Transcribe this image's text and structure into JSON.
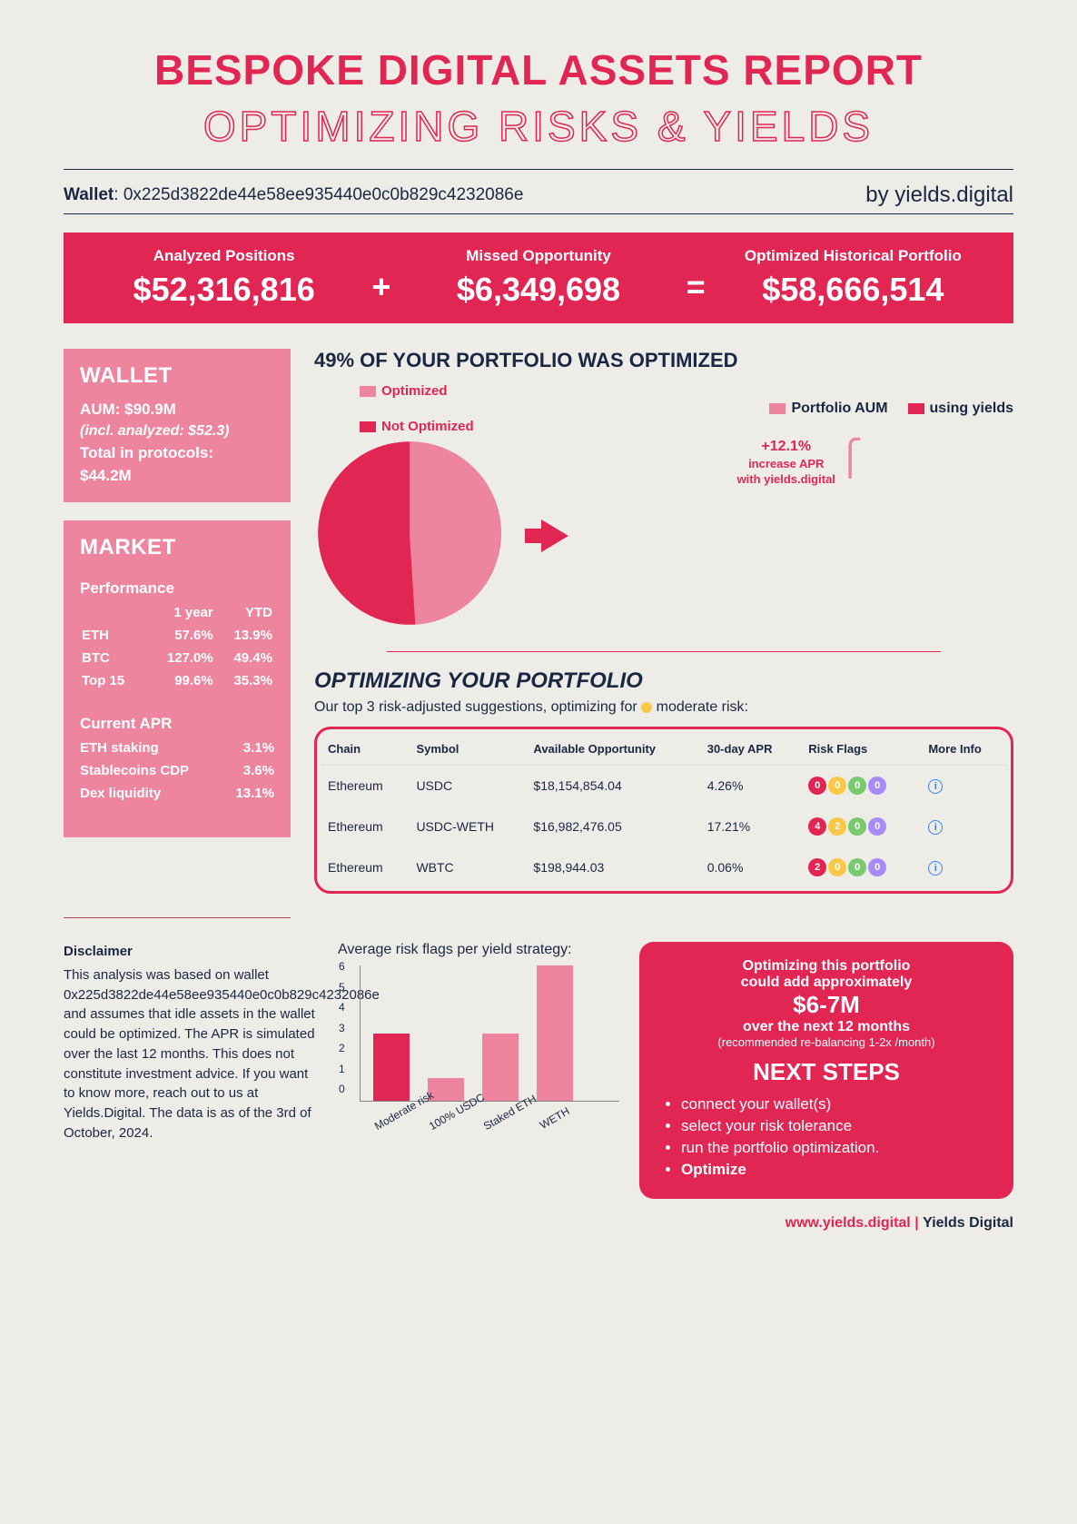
{
  "colors": {
    "primary": "#e12654",
    "light": "#ed859f",
    "lighter": "#f6b1c2",
    "dark_text": "#1a2744",
    "bg": "#eeece6",
    "moderate_dot": "#f9c846",
    "info_blue": "#3b82f6"
  },
  "header": {
    "title": "BESPOKE DIGITAL ASSETS REPORT",
    "subtitle": "OPTIMIZING RISKS & YIELDS",
    "wallet_label": "Wallet",
    "wallet_address": "0x225d3822de44e58ee935440e0c0b829c4232086e",
    "byline": "by yields.digital"
  },
  "metrics": {
    "analyzed_label": "Analyzed Positions",
    "analyzed_value": "$52,316,816",
    "missed_label": "Missed Opportunity",
    "missed_value": "$6,349,698",
    "optimized_label": "Optimized Historical Portfolio",
    "optimized_value": "$58,666,514"
  },
  "wallet_card": {
    "title": "WALLET",
    "aum_label": "AUM",
    "aum_value": "$90.9M",
    "incl_analyzed": "(incl. analyzed: $52.3)",
    "protocols_label": "Total in protocols:",
    "protocols_value": "$44.2M"
  },
  "market_card": {
    "title": "MARKET",
    "perf_title": "Performance",
    "col_1y": "1 year",
    "col_ytd": "YTD",
    "rows": [
      {
        "name": "ETH",
        "y1": "57.6%",
        "ytd": "13.9%"
      },
      {
        "name": "BTC",
        "y1": "127.0%",
        "ytd": "49.4%"
      },
      {
        "name": "Top 15",
        "y1": "99.6%",
        "ytd": "35.3%"
      }
    ],
    "apr_title": "Current APR",
    "apr_rows": [
      {
        "name": "ETH staking",
        "val": "3.1%"
      },
      {
        "name": "Stablecoins CDP",
        "val": "3.6%"
      },
      {
        "name": "Dex liquidity",
        "val": "13.1%"
      }
    ]
  },
  "opt_chart": {
    "title": "49% OF YOUR PORTFOLIO WAS OPTIMIZED",
    "legend_opt": "Optimized",
    "legend_not": "Not Optimized",
    "legend_aum": "Portfolio AUM",
    "legend_yields": "using yields",
    "pie": {
      "optimized_pct": 49,
      "colors": {
        "optimized": "#ed859f",
        "not_optimized": "#e12654"
      }
    },
    "increase_text1": "+12.1%",
    "increase_text2": "increase APR",
    "increase_text3": "with yields.digital",
    "bars": {
      "aum_height_pct": 78,
      "yields_height_pct": 100,
      "aum_color": "#ed859f",
      "yields_color": "#e12654"
    }
  },
  "opt_section": {
    "title": "OPTIMIZING YOUR PORTFOLIO",
    "subtitle_pre": "Our top 3 risk-adjusted suggestions, optimizing for ",
    "subtitle_post": "moderate risk:",
    "columns": [
      "Chain",
      "Symbol",
      "Available Opportunity",
      "30-day APR",
      "Risk Flags",
      "More Info"
    ],
    "rows": [
      {
        "chain": "Ethereum",
        "symbol": "USDC",
        "opp": "$18,154,854.04",
        "apr": "4.26%",
        "flags": [
          {
            "n": "0",
            "c": "#e12654"
          },
          {
            "n": "0",
            "c": "#f9c846"
          },
          {
            "n": "0",
            "c": "#7bc96f"
          },
          {
            "n": "0",
            "c": "#a78bfa"
          }
        ]
      },
      {
        "chain": "Ethereum",
        "symbol": "USDC-WETH",
        "opp": "$16,982,476.05",
        "apr": "17.21%",
        "flags": [
          {
            "n": "4",
            "c": "#e12654"
          },
          {
            "n": "2",
            "c": "#f9c846"
          },
          {
            "n": "0",
            "c": "#7bc96f"
          },
          {
            "n": "0",
            "c": "#a78bfa"
          }
        ]
      },
      {
        "chain": "Ethereum",
        "symbol": "WBTC",
        "opp": "$198,944.03",
        "apr": "0.06%",
        "flags": [
          {
            "n": "2",
            "c": "#e12654"
          },
          {
            "n": "0",
            "c": "#f9c846"
          },
          {
            "n": "0",
            "c": "#7bc96f"
          },
          {
            "n": "0",
            "c": "#a78bfa"
          }
        ]
      }
    ]
  },
  "disclaimer": {
    "title": "Disclaimer",
    "body": "This analysis was based on wallet 0x225d3822de44e58ee935440e0c0b829c4232086e and assumes that idle assets in the wallet could be optimized. The APR is simulated over the last 12 months. This does not constitute investment advice. If you want to know more, reach out to us at Yields.Digital. The data is as of the 3rd of October, 2024."
  },
  "mini_chart": {
    "title": "Average risk flags per yield strategy:",
    "y_max": 6,
    "bars": [
      {
        "label": "Moderate risk",
        "value": 3,
        "color": "#e12654"
      },
      {
        "label": "100% USDC",
        "value": 1,
        "color": "#ed859f"
      },
      {
        "label": "Staked ETH",
        "value": 3,
        "color": "#ed859f"
      },
      {
        "label": "WETH",
        "value": 6,
        "color": "#ed859f"
      }
    ]
  },
  "next_card": {
    "line1": "Optimizing this portfolio",
    "line2": "could add approximately",
    "amount": "$6-7M",
    "line3": "over the next 12 months",
    "line4": "(recommended re-balancing 1-2x /month)",
    "steps_title": "NEXT STEPS",
    "steps": [
      "connect your wallet(s)",
      "select your risk tolerance",
      "run the portfolio optimization.",
      "Optimize"
    ]
  },
  "footer": {
    "url": "www.yields.digital",
    "brand": "Yields Digital"
  }
}
